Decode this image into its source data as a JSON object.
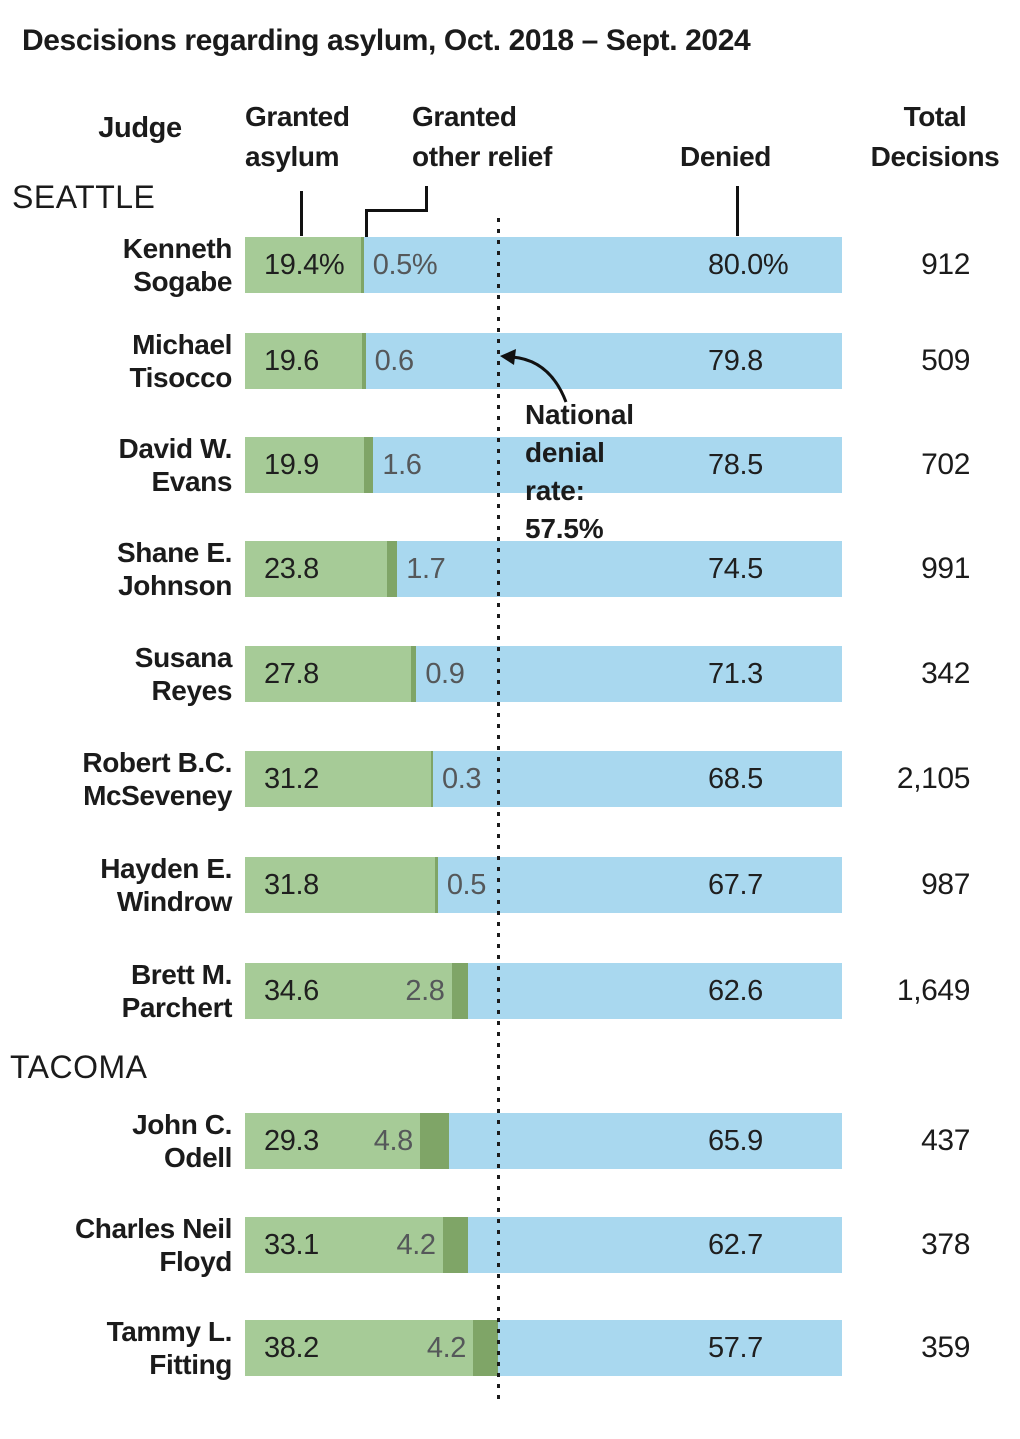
{
  "title": "Descisions regarding asylum, Oct. 2018 – Sept. 2024",
  "header": {
    "judge": "Judge",
    "granted_asylum_l1": "Granted",
    "granted_asylum_l2": "asylum",
    "other_relief_l1": "Granted",
    "other_relief_l2": "other relief",
    "denied": "Denied",
    "total_l1": "Total",
    "total_l2": "Decisions"
  },
  "sections": {
    "seattle": "SEATTLE",
    "tacoma": "TACOMA"
  },
  "annotation": {
    "line1": "National",
    "line2": "denial",
    "line3": "rate:",
    "line4": "57.5%",
    "national_denial_rate_pct": 57.5
  },
  "colors": {
    "granted_asylum": "#a6cb97",
    "granted_other_relief": "#7fa567",
    "denied": "#a9d8ef",
    "muted_value_text": "#55585a",
    "text": "#1b1b1b"
  },
  "rows": [
    {
      "judge_l1": "Kenneth",
      "judge_l2": "Sogabe",
      "granted_pct": 19.4,
      "other_pct": 0.5,
      "denied_pct": 80.0,
      "granted_label": "19.4%",
      "other_label_after": "0.5%",
      "denied_label": "80.0%",
      "total": "912"
    },
    {
      "judge_l1": "Michael",
      "judge_l2": "Tisocco",
      "granted_pct": 19.6,
      "other_pct": 0.6,
      "denied_pct": 79.8,
      "granted_label": "19.6",
      "other_label_after": "0.6",
      "denied_label": "79.8",
      "total": "509"
    },
    {
      "judge_l1": "David W.",
      "judge_l2": "Evans",
      "granted_pct": 19.9,
      "other_pct": 1.6,
      "denied_pct": 78.5,
      "granted_label": "19.9",
      "other_label_after": "1.6",
      "denied_label": "78.5",
      "total": "702"
    },
    {
      "judge_l1": "Shane E.",
      "judge_l2": "Johnson",
      "granted_pct": 23.8,
      "other_pct": 1.7,
      "denied_pct": 74.5,
      "granted_label": "23.8",
      "other_label_after": "1.7",
      "denied_label": "74.5",
      "total": "991"
    },
    {
      "judge_l1": "Susana",
      "judge_l2": "Reyes",
      "granted_pct": 27.8,
      "other_pct": 0.9,
      "denied_pct": 71.3,
      "granted_label": "27.8",
      "other_label_after": "0.9",
      "denied_label": "71.3",
      "total": "342"
    },
    {
      "judge_l1": "Robert B.C.",
      "judge_l2": "McSeveney",
      "granted_pct": 31.2,
      "other_pct": 0.3,
      "denied_pct": 68.5,
      "granted_label": "31.2",
      "other_label_after": "0.3",
      "denied_label": "68.5",
      "total": "2,105"
    },
    {
      "judge_l1": "Hayden E.",
      "judge_l2": "Windrow",
      "granted_pct": 31.8,
      "other_pct": 0.5,
      "denied_pct": 67.7,
      "granted_label": "31.8",
      "other_label_after": "0.5",
      "denied_label": "67.7",
      "total": "987"
    },
    {
      "judge_l1": "Brett M.",
      "judge_l2": "Parchert",
      "granted_pct": 34.6,
      "other_pct": 2.8,
      "denied_pct": 62.6,
      "granted_label": "34.6",
      "other_label_before": "2.8",
      "denied_label": "62.6",
      "total": "1,649"
    },
    {
      "judge_l1": "John C.",
      "judge_l2": "Odell",
      "granted_pct": 29.3,
      "other_pct": 4.8,
      "denied_pct": 65.9,
      "granted_label": "29.3",
      "other_label_before": "4.8",
      "denied_label": "65.9",
      "total": "437"
    },
    {
      "judge_l1": "Charles Neil",
      "judge_l2": "Floyd",
      "granted_pct": 33.1,
      "other_pct": 4.2,
      "denied_pct": 62.7,
      "granted_label": "33.1",
      "other_label_before": "4.2",
      "denied_label": "62.7",
      "total": "378"
    },
    {
      "judge_l1": "Tammy L.",
      "judge_l2": "Fitting",
      "granted_pct": 38.2,
      "other_pct": 4.2,
      "denied_pct": 57.7,
      "granted_label": "38.2",
      "other_label_before": "4.2",
      "denied_label": "57.7",
      "total": "359"
    }
  ],
  "chart_data": {
    "type": "bar",
    "orientation": "horizontal",
    "stacked": true,
    "title": "Descisions regarding asylum, Oct. 2018 – Sept. 2024",
    "units": "percent",
    "xlim": [
      0,
      100
    ],
    "grid": false,
    "groups": [
      {
        "label": "SEATTLE",
        "categories": [
          "Kenneth Sogabe",
          "Michael Tisocco",
          "David W. Evans",
          "Shane E. Johnson",
          "Susana Reyes",
          "Robert B.C. McSeveney",
          "Hayden E. Windrow",
          "Brett M. Parchert"
        ]
      },
      {
        "label": "TACOMA",
        "categories": [
          "John C. Odell",
          "Charles Neil Floyd",
          "Tammy L. Fitting"
        ]
      }
    ],
    "categories": [
      "Kenneth Sogabe",
      "Michael Tisocco",
      "David W. Evans",
      "Shane E. Johnson",
      "Susana Reyes",
      "Robert B.C. McSeveney",
      "Hayden E. Windrow",
      "Brett M. Parchert",
      "John C. Odell",
      "Charles Neil Floyd",
      "Tammy L. Fitting"
    ],
    "series": [
      {
        "name": "Granted asylum",
        "color": "#a6cb97",
        "values": [
          19.4,
          19.6,
          19.9,
          23.8,
          27.8,
          31.2,
          31.8,
          34.6,
          29.3,
          33.1,
          38.2
        ]
      },
      {
        "name": "Granted other relief",
        "color": "#7fa567",
        "values": [
          0.5,
          0.6,
          1.6,
          1.7,
          0.9,
          0.3,
          0.5,
          2.8,
          4.8,
          4.2,
          4.2
        ]
      },
      {
        "name": "Denied",
        "color": "#a9d8ef",
        "values": [
          80.0,
          79.8,
          78.5,
          74.5,
          71.3,
          68.5,
          67.7,
          62.6,
          65.9,
          62.7,
          57.7
        ]
      }
    ],
    "total_decisions": {
      "name": "Total Decisions",
      "values": [
        912,
        509,
        702,
        991,
        342,
        2105,
        987,
        1649,
        437,
        378,
        359
      ]
    },
    "annotations": [
      {
        "text": "National denial rate: 57.5%",
        "type": "vertical-dotted-line",
        "value_pct_denied": 57.5
      }
    ]
  }
}
